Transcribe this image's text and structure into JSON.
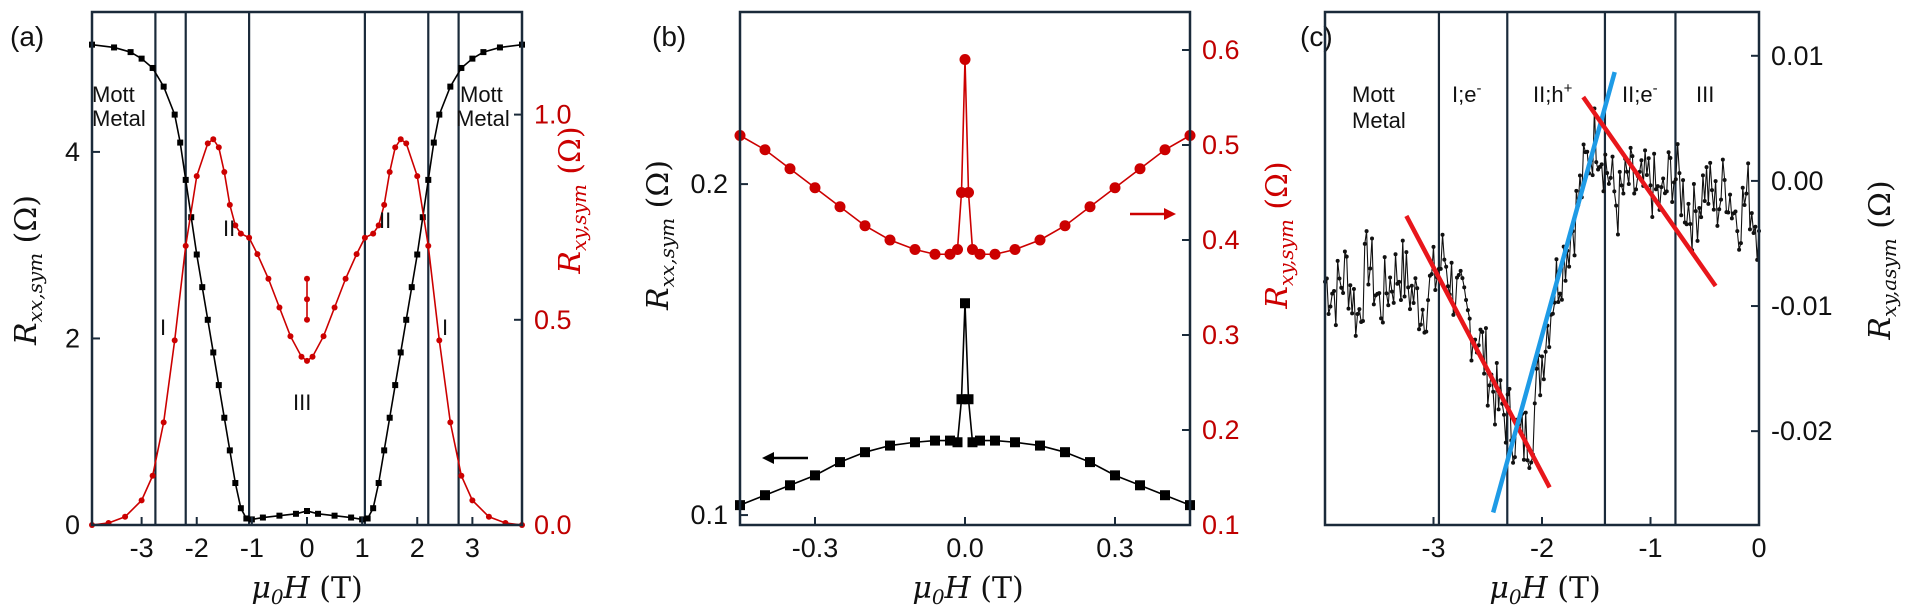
{
  "chart_data": [
    {
      "panel": "(a)",
      "type": "line",
      "title": "",
      "xlabel": "μ0H (T)",
      "xlim": [
        -3.9,
        3.9
      ],
      "xticks": [
        "-3",
        "-2",
        "-1",
        "0",
        "1",
        "2",
        "3"
      ],
      "ylabel_left": "Rxx,sym (Ω)",
      "ylim_left": [
        0,
        5.5
      ],
      "yticks_left": [
        "0",
        "2",
        "4"
      ],
      "ylabel_right": "Rxy,sym (Ω)",
      "ylim_right": [
        0,
        1.25
      ],
      "yticks_right": [
        "0.0",
        "0.5",
        "1.0"
      ],
      "vertical_lines": [
        -2.75,
        -2.2,
        -1.05,
        1.05,
        2.2,
        2.75
      ],
      "region_labels": [
        "Mott",
        "Metal",
        "Mott",
        "Metal",
        "II",
        "II",
        "I",
        "I",
        "III"
      ],
      "series": [
        {
          "name": "Rxx,sym",
          "axis": "left",
          "color": "#000000",
          "marker": "square",
          "x": [
            -3.9,
            -3.5,
            -3.2,
            -3.0,
            -2.8,
            -2.6,
            -2.4,
            -2.3,
            -2.2,
            -2.1,
            -2.0,
            -1.9,
            -1.8,
            -1.7,
            -1.6,
            -1.5,
            -1.4,
            -1.3,
            -1.2,
            -1.1,
            -1.0,
            -0.8,
            -0.5,
            -0.2,
            0.0,
            0.2,
            0.5,
            0.8,
            1.0,
            1.1,
            1.2,
            1.3,
            1.4,
            1.5,
            1.6,
            1.7,
            1.8,
            1.9,
            2.0,
            2.1,
            2.2,
            2.3,
            2.4,
            2.6,
            2.8,
            3.0,
            3.2,
            3.5,
            3.9
          ],
          "y": [
            5.15,
            5.12,
            5.07,
            5.0,
            4.9,
            4.7,
            4.4,
            4.1,
            3.7,
            3.3,
            2.9,
            2.55,
            2.2,
            1.85,
            1.5,
            1.15,
            0.8,
            0.45,
            0.18,
            0.07,
            0.06,
            0.08,
            0.1,
            0.12,
            0.15,
            0.12,
            0.1,
            0.08,
            0.06,
            0.07,
            0.18,
            0.45,
            0.8,
            1.15,
            1.5,
            1.85,
            2.2,
            2.55,
            2.9,
            3.3,
            3.7,
            4.1,
            4.4,
            4.7,
            4.9,
            5.0,
            5.07,
            5.12,
            5.15
          ]
        },
        {
          "name": "Rxy,sym",
          "axis": "right",
          "color": "#cc0000",
          "marker": "circle",
          "x": [
            -3.9,
            -3.6,
            -3.3,
            -3.0,
            -2.8,
            -2.6,
            -2.4,
            -2.2,
            -2.0,
            -1.8,
            -1.7,
            -1.6,
            -1.5,
            -1.4,
            -1.3,
            -1.2,
            -1.05,
            -0.9,
            -0.7,
            -0.5,
            -0.3,
            -0.1,
            0.0,
            0.1,
            0.3,
            0.5,
            0.7,
            0.9,
            1.05,
            1.2,
            1.3,
            1.4,
            1.5,
            1.6,
            1.7,
            1.8,
            2.0,
            2.2,
            2.4,
            2.6,
            2.8,
            3.0,
            3.3,
            3.6,
            3.9
          ],
          "y": [
            0.0,
            0.005,
            0.02,
            0.06,
            0.12,
            0.25,
            0.45,
            0.68,
            0.85,
            0.93,
            0.94,
            0.92,
            0.86,
            0.78,
            0.73,
            0.71,
            0.7,
            0.66,
            0.6,
            0.53,
            0.46,
            0.41,
            0.4,
            0.41,
            0.46,
            0.53,
            0.6,
            0.66,
            0.7,
            0.71,
            0.73,
            0.78,
            0.86,
            0.92,
            0.94,
            0.93,
            0.85,
            0.68,
            0.45,
            0.25,
            0.12,
            0.06,
            0.02,
            0.005,
            0.0
          ]
        },
        {
          "name": "Rxy,sym center spike",
          "axis": "right",
          "color": "#cc0000",
          "marker": "circle",
          "x": [
            0.0,
            0.0,
            0.0
          ],
          "y": [
            0.5,
            0.55,
            0.6
          ]
        }
      ]
    },
    {
      "panel": "(b)",
      "type": "line",
      "title": "",
      "xlabel": "μ0H (T)",
      "xlim": [
        -0.45,
        0.45
      ],
      "xticks": [
        "-0.3",
        "0.0",
        "0.3"
      ],
      "ylabel_left": "Rxx,sym (Ω)",
      "ylim_left": [
        0.097,
        0.252
      ],
      "yticks_left": [
        "0.1",
        "0.2"
      ],
      "ylabel_right": "Rxy,sym (Ω)",
      "ylim_right": [
        0.1,
        0.64
      ],
      "yticks_right": [
        "0.1",
        "0.2",
        "0.3",
        "0.4",
        "0.5",
        "0.6"
      ],
      "arrows": [
        "left arrow pointing to Rxx axis",
        "right arrow pointing to Rxy axis"
      ],
      "series": [
        {
          "name": "Rxx,sym",
          "axis": "left",
          "color": "#000000",
          "marker": "square",
          "x": [
            -0.45,
            -0.4,
            -0.35,
            -0.3,
            -0.25,
            -0.2,
            -0.15,
            -0.1,
            -0.06,
            -0.03,
            -0.015,
            -0.007,
            0.0,
            0.007,
            0.015,
            0.03,
            0.06,
            0.1,
            0.15,
            0.2,
            0.25,
            0.3,
            0.35,
            0.4,
            0.45
          ],
          "y": [
            0.103,
            0.106,
            0.109,
            0.112,
            0.116,
            0.119,
            0.121,
            0.122,
            0.1225,
            0.1225,
            0.122,
            0.135,
            0.164,
            0.135,
            0.122,
            0.1225,
            0.1225,
            0.122,
            0.121,
            0.119,
            0.116,
            0.112,
            0.109,
            0.106,
            0.103
          ]
        },
        {
          "name": "Rxy,sym",
          "axis": "right",
          "color": "#cc0000",
          "marker": "circle",
          "x": [
            -0.45,
            -0.4,
            -0.35,
            -0.3,
            -0.25,
            -0.2,
            -0.15,
            -0.1,
            -0.06,
            -0.03,
            -0.015,
            -0.007,
            0.0,
            0.007,
            0.015,
            0.03,
            0.06,
            0.1,
            0.15,
            0.2,
            0.25,
            0.3,
            0.35,
            0.4,
            0.45
          ],
          "y": [
            0.51,
            0.495,
            0.475,
            0.455,
            0.435,
            0.415,
            0.4,
            0.39,
            0.385,
            0.385,
            0.39,
            0.45,
            0.59,
            0.45,
            0.39,
            0.385,
            0.385,
            0.39,
            0.4,
            0.415,
            0.435,
            0.455,
            0.475,
            0.495,
            0.51
          ]
        }
      ]
    },
    {
      "panel": "(c)",
      "type": "line",
      "title": "",
      "xlabel": "μ0H (T)",
      "xlim": [
        -4.0,
        0.0
      ],
      "xticks": [
        "-3",
        "-2",
        "-1",
        "0"
      ],
      "ylabel_right": "Rxy,asym (Ω)",
      "ylim": [
        -0.0275,
        0.0135
      ],
      "yticks_right": [
        "0.01",
        "0.00",
        "-0.01",
        "-0.02"
      ],
      "vertical_lines": [
        -2.95,
        -2.32,
        -1.42,
        -0.77
      ],
      "region_labels": [
        "Mott",
        "Metal",
        "I;e⁻",
        "II;h⁺",
        "II;e⁻",
        "III"
      ],
      "series": [
        {
          "name": "Rxy,asym",
          "color": "#000000",
          "marker": "dot",
          "noisy": true,
          "x": [
            -4.0,
            -3.9,
            -3.8,
            -3.7,
            -3.6,
            -3.5,
            -3.4,
            -3.3,
            -3.2,
            -3.1,
            -3.0,
            -2.9,
            -2.8,
            -2.7,
            -2.6,
            -2.5,
            -2.4,
            -2.3,
            -2.2,
            -2.1,
            -2.0,
            -1.9,
            -1.8,
            -1.7,
            -1.6,
            -1.5,
            -1.4,
            -1.3,
            -1.2,
            -1.1,
            -1.0,
            -0.9,
            -0.8,
            -0.7,
            -0.6,
            -0.5,
            -0.4,
            -0.3,
            -0.2,
            -0.1,
            0.0
          ],
          "y": [
            -0.008,
            -0.009,
            -0.007,
            -0.011,
            -0.006,
            -0.01,
            -0.008,
            -0.007,
            -0.009,
            -0.01,
            -0.008,
            -0.006,
            -0.009,
            -0.011,
            -0.012,
            -0.015,
            -0.018,
            -0.019,
            -0.021,
            -0.02,
            -0.014,
            -0.009,
            -0.006,
            -0.003,
            0.001,
            0.004,
            0.001,
            -0.002,
            0.0,
            -0.001,
            0.0,
            -0.002,
            0.001,
            -0.001,
            -0.003,
            0.0,
            -0.002,
            0.0,
            -0.003,
            -0.001,
            -0.004
          ]
        },
        {
          "name": "fit I;e-",
          "color": "#e8161b",
          "x": [
            -3.25,
            -1.93
          ],
          "y": [
            -0.0028,
            -0.0245
          ]
        },
        {
          "name": "fit II;h+",
          "color": "#1e9be6",
          "x": [
            -2.45,
            -1.33
          ],
          "y": [
            -0.0265,
            0.0087
          ]
        },
        {
          "name": "fit II;e-",
          "color": "#e8161b",
          "x": [
            -1.62,
            -0.4
          ],
          "y": [
            0.0067,
            -0.0084
          ]
        }
      ]
    }
  ]
}
